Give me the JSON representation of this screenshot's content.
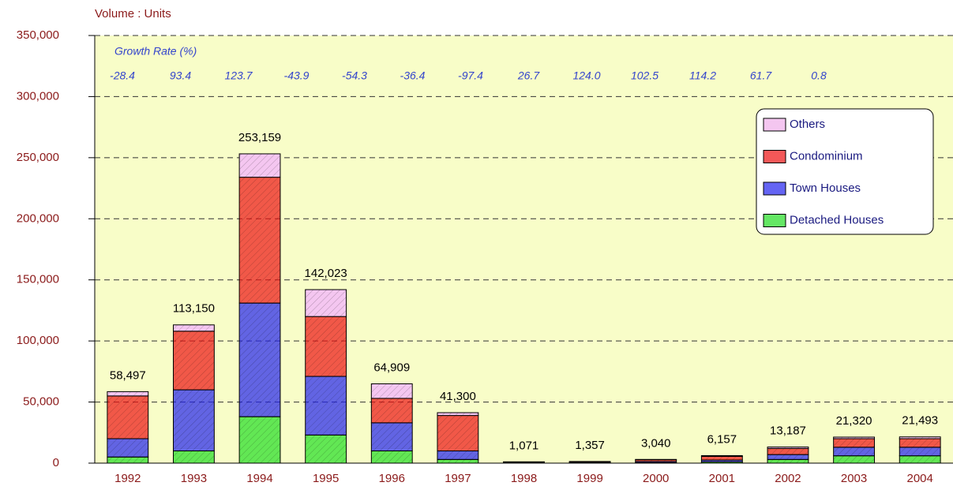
{
  "chart_data": {
    "type": "bar",
    "stacked": true,
    "y_axis_label": "Volume : Units",
    "categories": [
      "1992",
      "1993",
      "1994",
      "1995",
      "1996",
      "1997",
      "1998",
      "1999",
      "2000",
      "2001",
      "2002",
      "2003",
      "2004"
    ],
    "series": [
      {
        "name": "Detached Houses",
        "color": "#22dd22",
        "values": [
          5000,
          10000,
          38000,
          23000,
          10000,
          3000,
          200,
          200,
          400,
          1000,
          3000,
          6000,
          6000
        ]
      },
      {
        "name": "Town Houses",
        "color": "#2222ee",
        "values": [
          15000,
          50000,
          93000,
          48000,
          23000,
          7000,
          300,
          300,
          900,
          1500,
          4000,
          7000,
          7000
        ]
      },
      {
        "name": "Condominium",
        "color": "#ee1111",
        "values": [
          35000,
          48000,
          103000,
          49000,
          20000,
          29000,
          500,
          700,
          1500,
          3000,
          5000,
          7000,
          7000
        ]
      },
      {
        "name": "Others",
        "color": "#f4c6f0",
        "values": [
          3497,
          5150,
          19159,
          22023,
          11909,
          2300,
          71,
          157,
          240,
          657,
          1187,
          1320,
          1493
        ]
      }
    ],
    "totals": [
      58497,
      113150,
      253159,
      142023,
      64909,
      41300,
      1071,
      1357,
      3040,
      6157,
      13187,
      21320,
      21493
    ],
    "total_labels": [
      "58,497",
      "113,150",
      "253,159",
      "142,023",
      "64,909",
      "41,300",
      "1,071",
      "1,357",
      "3,040",
      "6,157",
      "13,187",
      "21,320",
      "21,493"
    ],
    "growth_rate": {
      "label": "Growth Rate (%)",
      "values": [
        -28.4,
        93.4,
        123.7,
        -43.9,
        -54.3,
        -36.4,
        -97.4,
        26.7,
        124.0,
        102.5,
        114.2,
        61.7,
        0.8
      ],
      "value_labels": [
        "-28.4",
        "93.4",
        "123.7",
        "-43.9",
        "-54.3",
        "-36.4",
        "-97.4",
        "26.7",
        "124.0",
        "102.5",
        "114.2",
        "61.7",
        "0.8"
      ]
    },
    "ylim": [
      0,
      350000
    ],
    "yticks": [
      0,
      {
        "value": 50000,
        "label": "50,000"
      },
      {
        "value": 100000,
        "label": "100,000"
      },
      {
        "value": 150000,
        "label": "150,000"
      },
      {
        "value": 200000,
        "label": "200,000"
      },
      {
        "value": 250000,
        "label": "250,000"
      },
      {
        "value": 300000,
        "label": "300,000"
      },
      {
        "value": 350000,
        "label": "350,000"
      }
    ],
    "grid": true,
    "legend": "upper right"
  }
}
